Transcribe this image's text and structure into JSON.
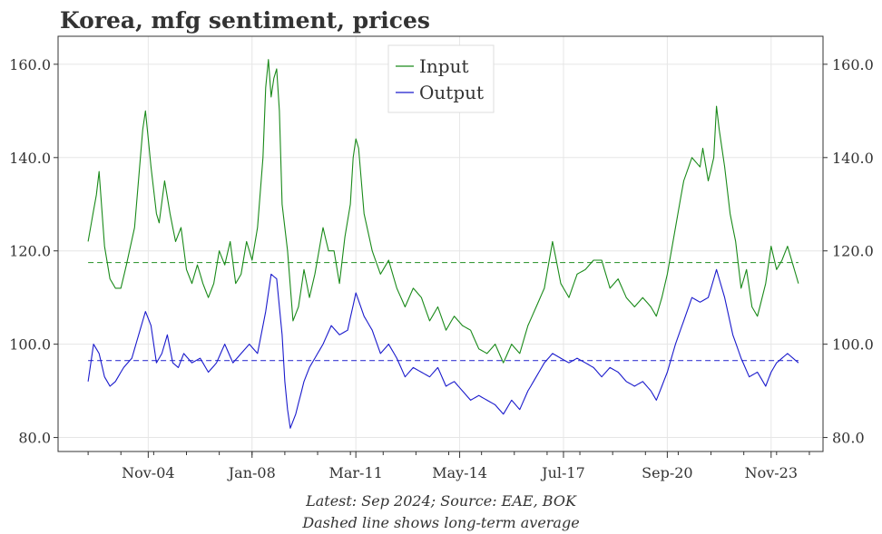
{
  "colors": {
    "input": "#1a8a1a",
    "output": "#1a1acc",
    "grid": "#e6e6e6",
    "axis": "#333333"
  },
  "chart_data": {
    "type": "line",
    "title": "Korea, mfg sentiment, prices",
    "xlabel": "",
    "ylabel": "",
    "ylim": [
      77,
      166
    ],
    "yticks": [
      80,
      100,
      120,
      140,
      160
    ],
    "ytick_labels": [
      "80.0",
      "100.0",
      "120.0",
      "140.0",
      "160.0"
    ],
    "x_start": "2003-01",
    "x_end": "2024-09",
    "xlim": [
      "2002-02",
      "2025-06"
    ],
    "xticks": [
      "2004-11",
      "2008-01",
      "2011-03",
      "2014-05",
      "2017-07",
      "2020-09",
      "2023-11"
    ],
    "xtick_labels": [
      "Nov-04",
      "Jan-08",
      "Mar-11",
      "May-14",
      "Jul-17",
      "Sep-20",
      "Nov-23"
    ],
    "grid": true,
    "legend_position": "top-center",
    "series": [
      {
        "name": "Input",
        "average": 117.5,
        "anchors": [
          [
            "2003-01",
            122
          ],
          [
            "2003-04",
            132
          ],
          [
            "2003-05",
            137
          ],
          [
            "2003-07",
            121
          ],
          [
            "2003-09",
            114
          ],
          [
            "2003-11",
            112
          ],
          [
            "2004-01",
            112
          ],
          [
            "2004-03",
            117
          ],
          [
            "2004-06",
            125
          ],
          [
            "2004-07",
            132
          ],
          [
            "2004-09",
            146
          ],
          [
            "2004-10",
            150
          ],
          [
            "2004-12",
            138
          ],
          [
            "2005-02",
            128
          ],
          [
            "2005-03",
            126
          ],
          [
            "2005-05",
            135
          ],
          [
            "2005-07",
            128
          ],
          [
            "2005-09",
            122
          ],
          [
            "2005-11",
            125
          ],
          [
            "2006-01",
            116
          ],
          [
            "2006-03",
            113
          ],
          [
            "2006-05",
            117
          ],
          [
            "2006-07",
            113
          ],
          [
            "2006-09",
            110
          ],
          [
            "2006-11",
            113
          ],
          [
            "2007-01",
            120
          ],
          [
            "2007-03",
            117
          ],
          [
            "2007-05",
            122
          ],
          [
            "2007-07",
            113
          ],
          [
            "2007-09",
            115
          ],
          [
            "2007-11",
            122
          ],
          [
            "2008-01",
            118
          ],
          [
            "2008-03",
            125
          ],
          [
            "2008-05",
            140
          ],
          [
            "2008-06",
            155
          ],
          [
            "2008-07",
            161
          ],
          [
            "2008-08",
            153
          ],
          [
            "2008-09",
            157
          ],
          [
            "2008-10",
            159
          ],
          [
            "2008-11",
            150
          ],
          [
            "2008-12",
            130
          ],
          [
            "2009-02",
            120
          ],
          [
            "2009-04",
            105
          ],
          [
            "2009-06",
            108
          ],
          [
            "2009-08",
            116
          ],
          [
            "2009-10",
            110
          ],
          [
            "2009-12",
            115
          ],
          [
            "2010-03",
            125
          ],
          [
            "2010-05",
            120
          ],
          [
            "2010-07",
            120
          ],
          [
            "2010-09",
            113
          ],
          [
            "2010-11",
            123
          ],
          [
            "2011-01",
            130
          ],
          [
            "2011-02",
            140
          ],
          [
            "2011-03",
            144
          ],
          [
            "2011-04",
            142
          ],
          [
            "2011-06",
            128
          ],
          [
            "2011-09",
            120
          ],
          [
            "2011-12",
            115
          ],
          [
            "2012-03",
            118
          ],
          [
            "2012-06",
            112
          ],
          [
            "2012-09",
            108
          ],
          [
            "2012-12",
            112
          ],
          [
            "2013-03",
            110
          ],
          [
            "2013-06",
            105
          ],
          [
            "2013-09",
            108
          ],
          [
            "2013-12",
            103
          ],
          [
            "2014-03",
            106
          ],
          [
            "2014-06",
            104
          ],
          [
            "2014-09",
            103
          ],
          [
            "2014-12",
            99
          ],
          [
            "2015-03",
            98
          ],
          [
            "2015-06",
            100
          ],
          [
            "2015-09",
            96
          ],
          [
            "2015-12",
            100
          ],
          [
            "2016-03",
            98
          ],
          [
            "2016-06",
            104
          ],
          [
            "2016-09",
            108
          ],
          [
            "2016-12",
            112
          ],
          [
            "2017-03",
            122
          ],
          [
            "2017-06",
            113
          ],
          [
            "2017-09",
            110
          ],
          [
            "2017-12",
            115
          ],
          [
            "2018-03",
            116
          ],
          [
            "2018-06",
            118
          ],
          [
            "2018-09",
            118
          ],
          [
            "2018-12",
            112
          ],
          [
            "2019-03",
            114
          ],
          [
            "2019-06",
            110
          ],
          [
            "2019-09",
            108
          ],
          [
            "2019-12",
            110
          ],
          [
            "2020-03",
            108
          ],
          [
            "2020-05",
            106
          ],
          [
            "2020-07",
            110
          ],
          [
            "2020-09",
            115
          ],
          [
            "2020-12",
            125
          ],
          [
            "2021-03",
            135
          ],
          [
            "2021-06",
            140
          ],
          [
            "2021-09",
            138
          ],
          [
            "2021-10",
            142
          ],
          [
            "2021-12",
            135
          ],
          [
            "2022-02",
            140
          ],
          [
            "2022-03",
            151
          ],
          [
            "2022-04",
            146
          ],
          [
            "2022-06",
            138
          ],
          [
            "2022-08",
            128
          ],
          [
            "2022-10",
            122
          ],
          [
            "2022-12",
            112
          ],
          [
            "2023-02",
            116
          ],
          [
            "2023-04",
            108
          ],
          [
            "2023-06",
            106
          ],
          [
            "2023-09",
            113
          ],
          [
            "2023-11",
            121
          ],
          [
            "2024-01",
            116
          ],
          [
            "2024-03",
            118
          ],
          [
            "2024-05",
            121
          ],
          [
            "2024-07",
            117
          ],
          [
            "2024-09",
            113
          ]
        ]
      },
      {
        "name": "Output",
        "average": 96.5,
        "anchors": [
          [
            "2003-01",
            92
          ],
          [
            "2003-03",
            100
          ],
          [
            "2003-05",
            98
          ],
          [
            "2003-07",
            93
          ],
          [
            "2003-09",
            91
          ],
          [
            "2003-11",
            92
          ],
          [
            "2004-02",
            95
          ],
          [
            "2004-05",
            97
          ],
          [
            "2004-08",
            103
          ],
          [
            "2004-10",
            107
          ],
          [
            "2004-12",
            104
          ],
          [
            "2005-02",
            96
          ],
          [
            "2005-04",
            98
          ],
          [
            "2005-06",
            102
          ],
          [
            "2005-08",
            96
          ],
          [
            "2005-10",
            95
          ],
          [
            "2005-12",
            98
          ],
          [
            "2006-03",
            96
          ],
          [
            "2006-06",
            97
          ],
          [
            "2006-09",
            94
          ],
          [
            "2006-12",
            96
          ],
          [
            "2007-03",
            100
          ],
          [
            "2007-06",
            96
          ],
          [
            "2007-09",
            98
          ],
          [
            "2007-12",
            100
          ],
          [
            "2008-03",
            98
          ],
          [
            "2008-06",
            107
          ],
          [
            "2008-08",
            115
          ],
          [
            "2008-10",
            114
          ],
          [
            "2008-12",
            102
          ],
          [
            "2009-01",
            92
          ],
          [
            "2009-02",
            86
          ],
          [
            "2009-03",
            82
          ],
          [
            "2009-05",
            85
          ],
          [
            "2009-08",
            92
          ],
          [
            "2009-10",
            95
          ],
          [
            "2009-12",
            97
          ],
          [
            "2010-03",
            100
          ],
          [
            "2010-06",
            104
          ],
          [
            "2010-09",
            102
          ],
          [
            "2010-12",
            103
          ],
          [
            "2011-03",
            111
          ],
          [
            "2011-06",
            106
          ],
          [
            "2011-09",
            103
          ],
          [
            "2011-12",
            98
          ],
          [
            "2012-03",
            100
          ],
          [
            "2012-06",
            97
          ],
          [
            "2012-09",
            93
          ],
          [
            "2012-12",
            95
          ],
          [
            "2013-03",
            94
          ],
          [
            "2013-06",
            93
          ],
          [
            "2013-09",
            95
          ],
          [
            "2013-12",
            91
          ],
          [
            "2014-03",
            92
          ],
          [
            "2014-06",
            90
          ],
          [
            "2014-09",
            88
          ],
          [
            "2014-12",
            89
          ],
          [
            "2015-03",
            88
          ],
          [
            "2015-06",
            87
          ],
          [
            "2015-09",
            85
          ],
          [
            "2015-12",
            88
          ],
          [
            "2016-03",
            86
          ],
          [
            "2016-06",
            90
          ],
          [
            "2016-09",
            93
          ],
          [
            "2016-12",
            96
          ],
          [
            "2017-03",
            98
          ],
          [
            "2017-06",
            97
          ],
          [
            "2017-09",
            96
          ],
          [
            "2017-12",
            97
          ],
          [
            "2018-03",
            96
          ],
          [
            "2018-06",
            95
          ],
          [
            "2018-09",
            93
          ],
          [
            "2018-12",
            95
          ],
          [
            "2019-03",
            94
          ],
          [
            "2019-06",
            92
          ],
          [
            "2019-09",
            91
          ],
          [
            "2019-12",
            92
          ],
          [
            "2020-03",
            90
          ],
          [
            "2020-05",
            88
          ],
          [
            "2020-07",
            91
          ],
          [
            "2020-09",
            94
          ],
          [
            "2020-12",
            100
          ],
          [
            "2021-03",
            105
          ],
          [
            "2021-06",
            110
          ],
          [
            "2021-09",
            109
          ],
          [
            "2021-12",
            110
          ],
          [
            "2022-03",
            116
          ],
          [
            "2022-06",
            110
          ],
          [
            "2022-09",
            102
          ],
          [
            "2022-12",
            97
          ],
          [
            "2023-03",
            93
          ],
          [
            "2023-06",
            94
          ],
          [
            "2023-09",
            91
          ],
          [
            "2023-11",
            94
          ],
          [
            "2024-01",
            96
          ],
          [
            "2024-03",
            97
          ],
          [
            "2024-05",
            98
          ],
          [
            "2024-07",
            97
          ],
          [
            "2024-09",
            96
          ]
        ]
      }
    ]
  },
  "footnote": {
    "line1": "Latest: Sep 2024; Source: EAE, BOK",
    "line2": "Dashed line shows long-term average"
  }
}
